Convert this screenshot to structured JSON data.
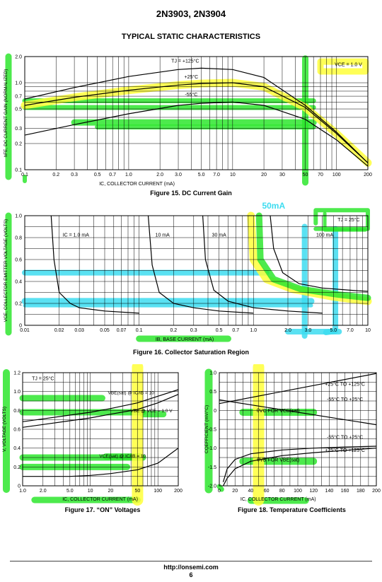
{
  "header": {
    "part_numbers": "2N3903, 2N3904",
    "section_title": "TYPICAL STATIC CHARACTERISTICS"
  },
  "colors": {
    "highlight_yellow": "#ffff3a",
    "highlight_green": "#2ee62e",
    "highlight_cyan": "#3ddcf0",
    "grid": "#000000",
    "curve": "#000000"
  },
  "chart_data": [
    {
      "id": "fig15",
      "type": "line",
      "caption": "Figure 15. DC Current Gain",
      "xlabel": "IC, COLLECTOR CURRENT (mA)",
      "ylabel": "hFE, DC CURRENT GAIN (NORMALIZED)",
      "x_scale": "log",
      "y_scale": "log",
      "xlim": [
        0.1,
        200
      ],
      "ylim": [
        0.1,
        2.0
      ],
      "xticks": [
        "0.1",
        "0.2",
        "0.3",
        "0.5",
        "0.7",
        "1.0",
        "2.0",
        "3.0",
        "5.0",
        "7.0",
        "10",
        "20",
        "30",
        "50",
        "70",
        "100",
        "200"
      ],
      "yticks": [
        "0.1",
        "0.2",
        "0.3",
        "0.5",
        "0.7",
        "1.0",
        "2.0"
      ],
      "annotations": [
        "TJ = +125°C",
        "+25°C",
        "-55°C",
        "VCE = 1.0 V",
        "50"
      ],
      "series": [
        {
          "name": "TJ = +125°C",
          "x": [
            0.1,
            0.3,
            1,
            3,
            5,
            10,
            20,
            50,
            100,
            200
          ],
          "y": [
            0.65,
            0.88,
            1.18,
            1.42,
            1.47,
            1.42,
            1.15,
            0.55,
            0.27,
            0.12
          ]
        },
        {
          "name": "+25°C",
          "x": [
            0.1,
            0.3,
            1,
            3,
            5,
            10,
            20,
            50,
            100,
            200
          ],
          "y": [
            0.55,
            0.68,
            0.82,
            0.94,
            0.98,
            1.0,
            0.9,
            0.52,
            0.26,
            0.12
          ]
        },
        {
          "name": "-55°C",
          "x": [
            0.1,
            0.3,
            1,
            3,
            5,
            10,
            20,
            50,
            100,
            200
          ],
          "y": [
            0.25,
            0.33,
            0.44,
            0.55,
            0.58,
            0.6,
            0.55,
            0.38,
            0.22,
            0.11
          ]
        }
      ]
    },
    {
      "id": "fig16",
      "type": "line",
      "caption": "Figure 16. Collector Saturation Region",
      "xlabel": "IB, BASE CURRENT (mA)",
      "ylabel": "VCE, COLLECTOR EMITTER VOLTAGE (VOLTS)",
      "x_scale": "log",
      "xlim": [
        0.01,
        10
      ],
      "ylim": [
        0,
        1.0
      ],
      "xticks": [
        "0.01",
        "0.02",
        "0.03",
        "0.05",
        "0.07",
        "0.1",
        "0.2",
        "0.3",
        "0.5",
        "0.7",
        "1.0",
        "2.0",
        "3.0",
        "5.0",
        "7.0",
        "10"
      ],
      "yticks": [
        "0",
        "0.2",
        "0.4",
        "0.6",
        "0.8",
        "1.0"
      ],
      "annotations": [
        "TJ = 25°C",
        "50mA"
      ],
      "series": [
        {
          "name": "IC = 1.0 mA",
          "x": [
            0.017,
            0.018,
            0.02,
            0.025,
            0.03,
            0.05,
            0.1
          ],
          "y": [
            1.0,
            0.6,
            0.3,
            0.2,
            0.16,
            0.13,
            0.11
          ]
        },
        {
          "name": "10 mA",
          "x": [
            0.12,
            0.13,
            0.15,
            0.2,
            0.3,
            0.5,
            1.0
          ],
          "y": [
            1.0,
            0.55,
            0.3,
            0.2,
            0.16,
            0.13,
            0.11
          ]
        },
        {
          "name": "30 mA",
          "x": [
            0.36,
            0.38,
            0.45,
            0.6,
            1.0,
            2.0,
            4.0
          ],
          "y": [
            1.0,
            0.6,
            0.32,
            0.22,
            0.16,
            0.13,
            0.11
          ]
        },
        {
          "name": "100 mA",
          "x": [
            1.4,
            1.5,
            1.8,
            2.5,
            4.0,
            7.0,
            10
          ],
          "y": [
            1.0,
            0.7,
            0.48,
            0.38,
            0.34,
            0.32,
            0.31
          ]
        }
      ]
    },
    {
      "id": "fig17",
      "type": "line",
      "caption": "Figure 17. “ON” Voltages",
      "xlabel": "IC, COLLECTOR CURRENT (mA)",
      "ylabel": "V, VOLTAGE (VOLTS)",
      "x_scale": "log",
      "xlim": [
        1.0,
        200
      ],
      "ylim": [
        0,
        1.2
      ],
      "xticks": [
        "1.0",
        "2.0",
        "5.0",
        "10",
        "20",
        "50",
        "100",
        "200"
      ],
      "yticks": [
        "0",
        "0.2",
        "0.4",
        "0.6",
        "0.8",
        "1.0",
        "1.2"
      ],
      "annotations": [
        "TJ = 25°C",
        "VBE(sat) @ IC/IB = 10",
        "VBE @ VCE = 1.0 V",
        "VCE(sat) @ IC/IB = 10"
      ],
      "series": [
        {
          "name": "VBE(sat) @ IC/IB = 10",
          "x": [
            1,
            2,
            5,
            10,
            20,
            50,
            100,
            200
          ],
          "y": [
            0.68,
            0.71,
            0.75,
            0.78,
            0.82,
            0.88,
            0.95,
            1.02
          ]
        },
        {
          "name": "VBE @ VCE = 1.0 V",
          "x": [
            1,
            2,
            5,
            10,
            20,
            50,
            100,
            200
          ],
          "y": [
            0.62,
            0.65,
            0.69,
            0.72,
            0.76,
            0.81,
            0.88,
            0.97
          ]
        },
        {
          "name": "VCE(sat) @ IC/IB = 10",
          "x": [
            1,
            2,
            5,
            10,
            20,
            50,
            100,
            200
          ],
          "y": [
            0.1,
            0.1,
            0.1,
            0.11,
            0.13,
            0.17,
            0.24,
            0.4
          ]
        }
      ]
    },
    {
      "id": "fig18",
      "type": "line",
      "caption": "Figure 18. Temperature Coefficients",
      "xlabel": "IC, COLLECTOR CURRENT (mA)",
      "ylabel": "COEFFICIENT (mV/°C)",
      "xlim": [
        0,
        200
      ],
      "ylim": [
        -2.0,
        1.0
      ],
      "xticks": [
        "0",
        "20",
        "40",
        "60",
        "80",
        "100",
        "120",
        "140",
        "160",
        "180",
        "200"
      ],
      "yticks": [
        "1.0",
        "0.5",
        "0",
        "-0.5",
        "-1.0",
        "-1.5",
        "-2.0"
      ],
      "annotations": [
        "θVC FOR VCE(sat)",
        "θVB FOR VBE(sat)",
        "+25°C TO +125°C",
        "-55°C TO +25°C",
        "-55°C TO +25°C",
        "+25°C TO +125°C"
      ],
      "series": [
        {
          "name": "θVC +25°C TO +125°C",
          "x": [
            0,
            200
          ],
          "y": [
            0.18,
            0.98
          ]
        },
        {
          "name": "θVC -55°C TO +25°C",
          "x": [
            0,
            200
          ],
          "y": [
            0.28,
            -0.38
          ]
        },
        {
          "name": "θVB -55°C TO +25°C",
          "x": [
            5,
            10,
            20,
            40,
            80,
            120,
            160,
            200
          ],
          "y": [
            -1.9,
            -1.55,
            -1.3,
            -1.15,
            -1.05,
            -1.0,
            -0.97,
            -0.95
          ]
        },
        {
          "name": "θVB +25°C TO +125°C",
          "x": [
            5,
            10,
            20,
            40,
            80,
            120,
            160,
            200
          ],
          "y": [
            -2.0,
            -1.8,
            -1.55,
            -1.35,
            -1.2,
            -1.12,
            -1.06,
            -1.0
          ]
        }
      ]
    }
  ],
  "footer": {
    "url": "http://onsemi.com",
    "page_number": "6"
  }
}
